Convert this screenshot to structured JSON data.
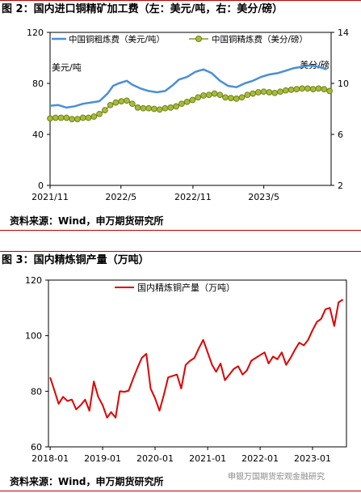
{
  "figures": [
    {
      "title": "图 2：国内进口铜精矿加工费（左：美元/吨，右：美分/磅）",
      "source": "资料来源：Wind，申万期货研究所"
    },
    {
      "title": "图 3：国内精炼铜产量（万吨）",
      "source": "资料来源：Wind，申万期货研究所"
    }
  ],
  "watermark": "申银万国期货宏观金融研究",
  "chart_data": [
    {
      "type": "line",
      "title": "",
      "x_ticks": [
        "2021/11",
        "2022/5",
        "2022/11",
        "2023/5"
      ],
      "left_axis": {
        "label": "美元/吨",
        "ylim": [
          0,
          120
        ],
        "ticks": [
          0,
          40,
          80,
          120
        ]
      },
      "right_axis": {
        "label": "美分/磅",
        "ylim": [
          2,
          14
        ],
        "ticks": [
          2,
          6,
          10,
          14
        ]
      },
      "legend_position": "top",
      "grid": false,
      "series": [
        {
          "name": "中国铜粗炼费（美元/吨）",
          "axis": "left",
          "color": "#4a8fd6",
          "marker": "none",
          "x": [
            "2021-11-01",
            "2021-11-22",
            "2021-12-13",
            "2022-01-03",
            "2022-01-24",
            "2022-02-14",
            "2022-03-07",
            "2022-03-28",
            "2022-04-11",
            "2022-04-25",
            "2022-05-16",
            "2022-05-30",
            "2022-06-20",
            "2022-07-11",
            "2022-08-01",
            "2022-08-22",
            "2022-09-12",
            "2022-09-26",
            "2022-10-17",
            "2022-11-07",
            "2022-11-28",
            "2022-12-19",
            "2023-01-09",
            "2023-01-30",
            "2023-02-20",
            "2023-03-13",
            "2023-04-03",
            "2023-04-24",
            "2023-05-15",
            "2023-06-05",
            "2023-06-26",
            "2023-07-17",
            "2023-08-07",
            "2023-08-28",
            "2023-09-18",
            "2023-10-09"
          ],
          "values": [
            62.5,
            63,
            61,
            62,
            64,
            65,
            66,
            72,
            78,
            80,
            82,
            79,
            76,
            74,
            73,
            74,
            79,
            83,
            85,
            89,
            91,
            88,
            82,
            78,
            77,
            80,
            82,
            85,
            87,
            88,
            90,
            92,
            93,
            94,
            93,
            91
          ]
        },
        {
          "name": "中国铜精炼费（美分/磅）",
          "axis": "right",
          "color": "#a6bc3a",
          "marker": "circle",
          "x": [
            "2021-11-01",
            "2021-11-15",
            "2021-11-29",
            "2021-12-13",
            "2021-12-27",
            "2022-01-10",
            "2022-01-24",
            "2022-02-07",
            "2022-02-21",
            "2022-03-07",
            "2022-03-21",
            "2022-04-04",
            "2022-04-18",
            "2022-05-02",
            "2022-05-16",
            "2022-05-30",
            "2022-06-13",
            "2022-06-27",
            "2022-07-11",
            "2022-07-25",
            "2022-08-08",
            "2022-08-22",
            "2022-09-05",
            "2022-09-19",
            "2022-10-03",
            "2022-10-17",
            "2022-10-31",
            "2022-11-14",
            "2022-11-28",
            "2022-12-12",
            "2022-12-26",
            "2023-01-09",
            "2023-01-23",
            "2023-02-06",
            "2023-02-20",
            "2023-03-06",
            "2023-03-20",
            "2023-04-03",
            "2023-04-17",
            "2023-05-01",
            "2023-05-15",
            "2023-05-29",
            "2023-06-12",
            "2023-06-26",
            "2023-07-10",
            "2023-07-24",
            "2023-08-07",
            "2023-08-21",
            "2023-09-04",
            "2023-09-18",
            "2023-10-02",
            "2023-10-16"
          ],
          "values": [
            7.25,
            7.3,
            7.3,
            7.3,
            7.2,
            7.2,
            7.3,
            7.3,
            7.4,
            7.6,
            7.9,
            8.3,
            8.5,
            8.6,
            8.65,
            8.4,
            8.1,
            8.05,
            8.05,
            8.0,
            7.95,
            8.05,
            8.1,
            8.2,
            8.4,
            8.55,
            8.7,
            8.9,
            9.05,
            9.1,
            9.2,
            9.1,
            8.9,
            8.85,
            8.8,
            8.9,
            9.1,
            9.2,
            9.3,
            9.35,
            9.3,
            9.25,
            9.35,
            9.45,
            9.5,
            9.55,
            9.6,
            9.6,
            9.55,
            9.6,
            9.55,
            9.4
          ]
        }
      ]
    },
    {
      "type": "line",
      "title": "",
      "x_ticks": [
        "2018-01",
        "2019-01",
        "2020-01",
        "2021-01",
        "2022-01",
        "2023-01"
      ],
      "ylim": [
        60,
        120
      ],
      "y_ticks": [
        60,
        80,
        100,
        120
      ],
      "legend_position": "top-left",
      "grid": false,
      "series": [
        {
          "name": "国内精炼铜产量（万吨）",
          "color": "#e00000",
          "x": [
            "2018-01",
            "2018-02",
            "2018-03",
            "2018-04",
            "2018-05",
            "2018-06",
            "2018-07",
            "2018-08",
            "2018-09",
            "2018-10",
            "2018-11",
            "2018-12",
            "2019-01",
            "2019-02",
            "2019-03",
            "2019-04",
            "2019-05",
            "2019-06",
            "2019-07",
            "2019-08",
            "2019-09",
            "2019-10",
            "2019-11",
            "2019-12",
            "2020-01",
            "2020-02",
            "2020-03",
            "2020-04",
            "2020-05",
            "2020-06",
            "2020-07",
            "2020-08",
            "2020-09",
            "2020-10",
            "2020-11",
            "2020-12",
            "2021-01",
            "2021-02",
            "2021-03",
            "2021-04",
            "2021-05",
            "2021-06",
            "2021-07",
            "2021-08",
            "2021-09",
            "2021-10",
            "2021-11",
            "2021-12",
            "2022-01",
            "2022-02",
            "2022-03",
            "2022-04",
            "2022-05",
            "2022-06",
            "2022-07",
            "2022-08",
            "2022-09",
            "2022-10",
            "2022-11",
            "2022-12",
            "2023-01",
            "2023-02",
            "2023-03",
            "2023-04",
            "2023-05",
            "2023-06",
            "2023-07",
            "2023-08"
          ],
          "values": [
            85,
            80,
            75.5,
            78,
            76.5,
            77,
            73.5,
            75,
            77,
            73,
            83.5,
            78,
            75,
            70.5,
            72.5,
            70.5,
            80,
            79.8,
            80.2,
            84.5,
            88.5,
            92,
            93.5,
            81,
            77.5,
            73,
            78.5,
            85,
            85.5,
            86,
            81,
            89.5,
            91,
            92,
            95.5,
            98.5,
            94,
            89.5,
            87,
            90,
            84,
            86,
            88,
            89,
            86,
            87.5,
            91,
            92,
            93,
            94,
            90,
            92.5,
            91.5,
            94,
            89.5,
            92,
            95,
            97.5,
            96.5,
            98.5,
            102,
            105,
            106,
            109.5,
            110,
            103.5,
            112,
            113
          ]
        }
      ]
    }
  ]
}
